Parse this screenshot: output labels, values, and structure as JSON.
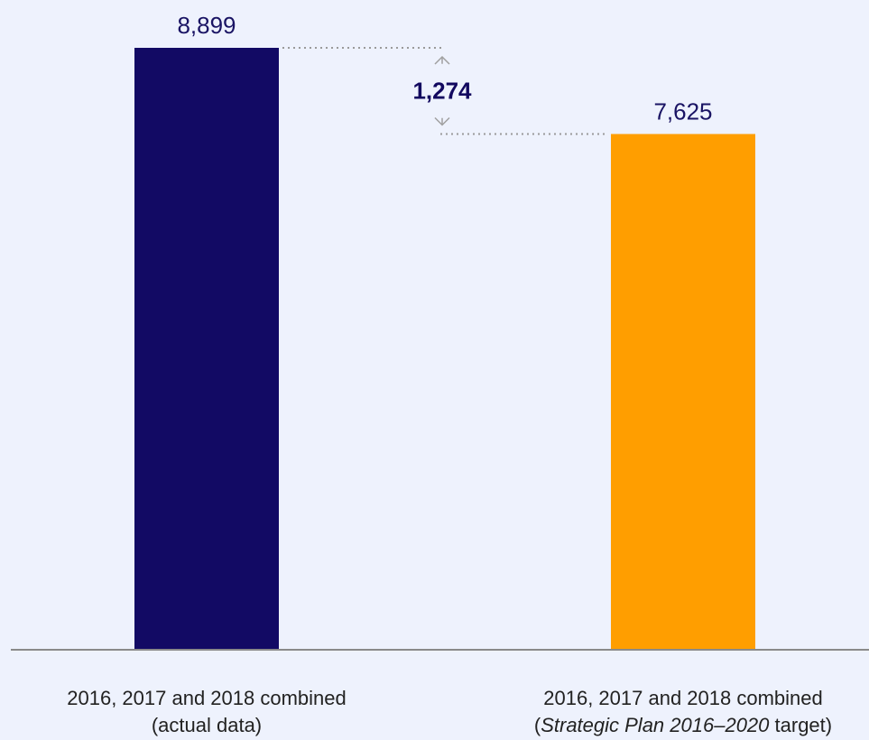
{
  "chart_data": {
    "type": "bar",
    "categories": [
      {
        "line1": "2016, 2017 and 2018 combined",
        "line2_prefix": "(actual data)",
        "line2_italic": "",
        "line2_suffix": ""
      },
      {
        "line1": "2016, 2017 and 2018 combined",
        "line2_prefix": "(",
        "line2_italic": "Strategic Plan 2016–2020",
        "line2_suffix": " target)"
      }
    ],
    "values": [
      8899,
      7625
    ],
    "value_labels": [
      "8,899",
      "7,625"
    ],
    "difference": {
      "value": 1274,
      "label": "1,274"
    },
    "bar_colors": [
      "#120a64",
      "#ff9e00"
    ],
    "ylim": [
      0,
      8899
    ],
    "grid": false,
    "title": "",
    "xlabel": "",
    "ylabel": ""
  }
}
